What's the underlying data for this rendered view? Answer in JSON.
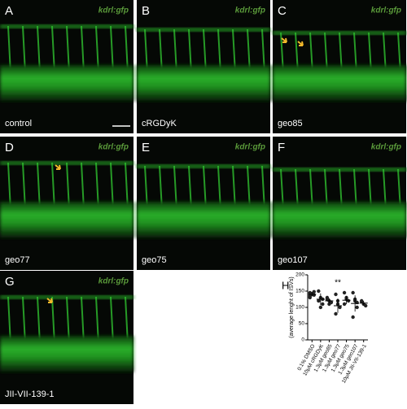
{
  "panels": [
    {
      "label": "A",
      "marker": "kdrl:gfp",
      "condition": "control"
    },
    {
      "label": "B",
      "marker": "kdrl:gfp",
      "condition": "cRGDyK"
    },
    {
      "label": "C",
      "marker": "kdrl:gfp",
      "condition": "geo85"
    },
    {
      "label": "D",
      "marker": "kdrl:gfp",
      "condition": "geo77"
    },
    {
      "label": "E",
      "marker": "kdrl:gfp",
      "condition": "geo75"
    },
    {
      "label": "F",
      "marker": "kdrl:gfp",
      "condition": "geo107"
    },
    {
      "label": "G",
      "marker": "kdrl:gfp",
      "condition": "JII-VII-139-1"
    }
  ],
  "chart_data": {
    "type": "dotplot",
    "panel_label": "H",
    "y_label": "(average lenght of ISVs)",
    "categories": [
      "0.1% DMSO",
      "10μM cRGDyK",
      "1.3μM geo85",
      "1.3μM geo77",
      "1.3μM geo75",
      "1.3μM geo107",
      "10μM JII-VII-139-1"
    ],
    "values": [
      [
        145,
        140,
        138,
        135,
        142,
        148,
        130
      ],
      [
        150,
        130,
        110,
        120,
        100,
        125
      ],
      [
        130,
        120,
        115,
        125,
        110
      ],
      [
        140,
        120,
        100,
        80,
        110
      ],
      [
        145,
        130,
        120,
        110,
        125
      ],
      [
        145,
        120,
        100,
        70,
        125,
        115
      ],
      [
        120,
        110,
        105,
        118
      ]
    ],
    "means": [
      140,
      125,
      120,
      105,
      122,
      112,
      113
    ],
    "errors": [
      6,
      18,
      8,
      22,
      12,
      25,
      7
    ],
    "color": "#222222",
    "annotations": [
      {
        "category": 3,
        "text": "**"
      }
    ],
    "ylim": [
      0,
      200
    ],
    "yticks": [
      0,
      50,
      100,
      150,
      200
    ]
  }
}
